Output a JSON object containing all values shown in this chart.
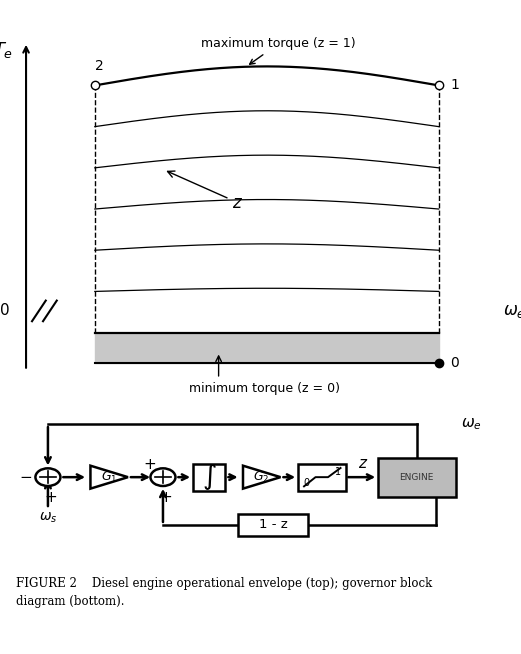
{
  "title": "FIGURE 2",
  "caption": "FIGURE 2    Diesel engine operational envelope (top); governor block\ndiagram (bottom).",
  "top_ax_title": "maximum torque (z = 1)",
  "bottom_label": "minimum torque (z = 0)",
  "Te_label": "$T_e$",
  "we_label": "$\\omega_e$",
  "ws_label": "$\\omega_s$",
  "z_label": "$z$",
  "num_curves": 6,
  "bg_color": "#ffffff",
  "curve_color": "#000000",
  "gray_color": "#c8c8c8",
  "xlim": [
    0,
    10
  ],
  "ylim": [
    -3,
    10
  ],
  "x_start": 1.5,
  "x_end": 9.0
}
